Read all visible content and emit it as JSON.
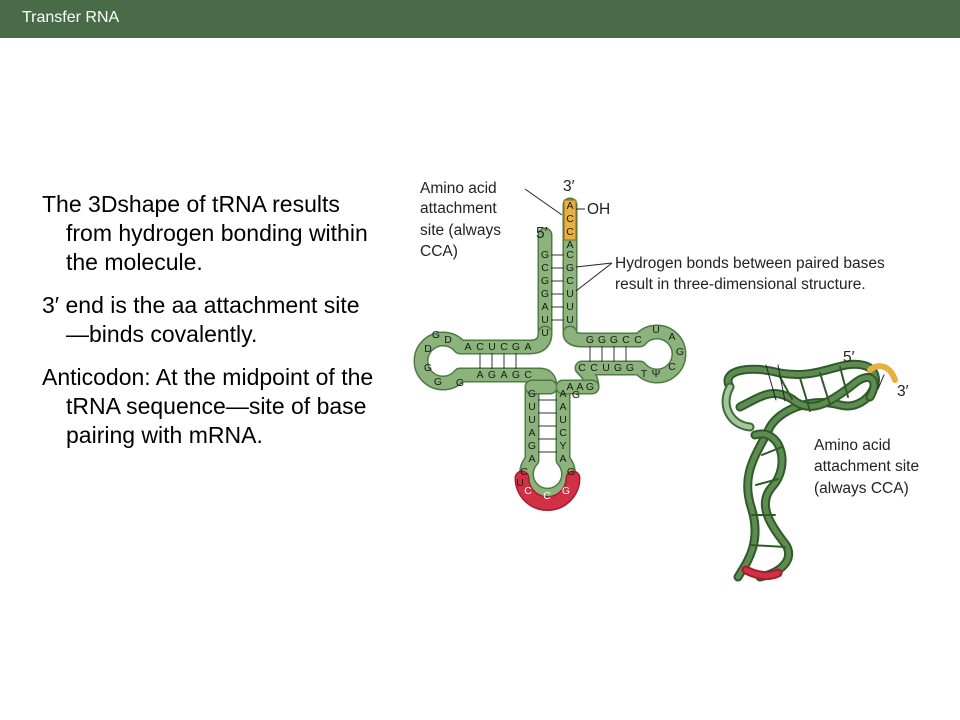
{
  "header": {
    "title": "Transfer RNA"
  },
  "bullets": [
    "The 3Dshape of tRNA results from hydrogen bonding within the molecule.",
    "3′ end is the aa attachment site—binds covalently.",
    "Anticodon: At the midpoint of the tRNA sequence—site of base pairing with mRNA."
  ],
  "diagram": {
    "labels": {
      "amino_acid_site": [
        "Amino acid",
        "attachment",
        "site (always",
        "CCA)"
      ],
      "three_prime": "3′",
      "five_prime": "5′",
      "oh": "OH",
      "hydrogen_bonds": [
        "Hydrogen bonds between paired bases",
        "result in three-dimensional structure."
      ],
      "three_d_five_prime": "5′",
      "three_d_three_prime": "3′",
      "three_d_amino_acid_site": [
        "Amino acid",
        "attachment site",
        "(always CCA)"
      ]
    },
    "sequences": {
      "cca_end": [
        "A",
        "C",
        "C"
      ],
      "acceptor_5prime": [
        "G",
        "C",
        "G",
        "G",
        "A",
        "U",
        "U"
      ],
      "acceptor_3prime": [
        "A",
        "C",
        "G",
        "C",
        "U",
        "U",
        "U"
      ],
      "d_arm_top": [
        "A",
        "C",
        "U",
        "C",
        "G",
        "A"
      ],
      "d_arm_bottom": [
        "A",
        "G",
        "A",
        "G",
        "C"
      ],
      "d_loop": [
        "D",
        "G",
        "D",
        "G",
        "G",
        "G"
      ],
      "t_arm_top": [
        "G",
        "G",
        "G",
        "C",
        "C"
      ],
      "t_arm_bottom": [
        "C",
        "C",
        "U",
        "G",
        "G"
      ],
      "t_loop": [
        "U",
        "A",
        "G",
        "C",
        "Ψ",
        "T"
      ],
      "anticodon_arm_left": [
        "G",
        "U",
        "U",
        "A",
        "G",
        "A"
      ],
      "anticodon_arm_right": [
        "A",
        "A",
        "U",
        "C",
        "Y",
        "A"
      ],
      "anticodon_loop": [
        "C",
        "U",
        "G"
      ],
      "anticodon": [
        "C",
        "C",
        "G"
      ],
      "variable_loop": [
        "A",
        "A",
        "G",
        "G"
      ]
    },
    "colors": {
      "rna": "#7ea86f",
      "rna_dark": "#3d6b35",
      "cca": "#e8b040",
      "anticodon": "#c8283c"
    }
  }
}
